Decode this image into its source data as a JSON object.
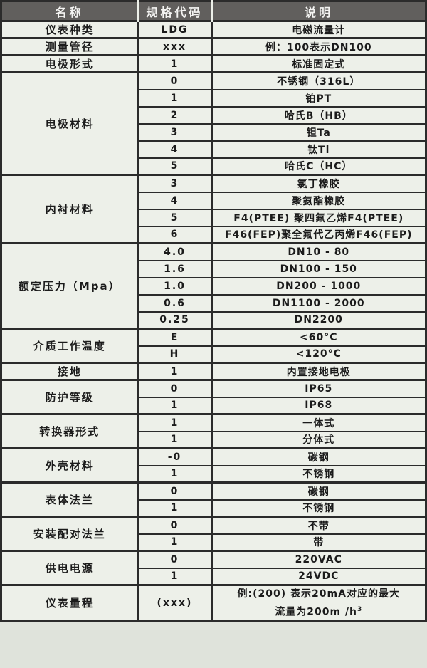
{
  "colors": {
    "page_bg": "#dfe3db",
    "cell_bg": "#edf0e9",
    "header_bg": "#615f5d",
    "header_text": "#f4f4f2",
    "border": "#2b2b2b",
    "text": "#1b1b1b"
  },
  "table": {
    "headers": [
      "名称",
      "规格代码",
      "说明"
    ],
    "groups": [
      {
        "name": "仪表种类",
        "rows": [
          {
            "code": "LDG",
            "desc": "电磁流量计"
          }
        ]
      },
      {
        "name": "测量管径",
        "rows": [
          {
            "code": "xxx",
            "desc": "例：100表示DN100"
          }
        ]
      },
      {
        "name": "电极形式",
        "rows": [
          {
            "code": "1",
            "desc": "标准固定式"
          }
        ]
      },
      {
        "name": "电极材料",
        "rows": [
          {
            "code": "0",
            "desc": "不锈钢（316L）"
          },
          {
            "code": "1",
            "desc": "铂PT"
          },
          {
            "code": "2",
            "desc": "哈氏B（HB）"
          },
          {
            "code": "3",
            "desc": "钽Ta"
          },
          {
            "code": "4",
            "desc": "钛Ti"
          },
          {
            "code": "5",
            "desc": "哈氏C（HC）"
          }
        ]
      },
      {
        "name": "内衬材料",
        "rows": [
          {
            "code": "3",
            "desc": "氯丁橡胶"
          },
          {
            "code": "4",
            "desc": "聚氨酯橡胶"
          },
          {
            "code": "5",
            "desc": "F4(PTEE) 聚四氟乙烯F4(PTEE)"
          },
          {
            "code": "6",
            "desc": "F46(FEP)聚全氟代乙丙烯F46(FEP)"
          }
        ]
      },
      {
        "name": "额定压力（Mpa）",
        "rows": [
          {
            "code": "4.0",
            "desc": "DN10 - 80"
          },
          {
            "code": "1.6",
            "desc": "DN100 - 150"
          },
          {
            "code": "1.0",
            "desc": "DN200 - 1000"
          },
          {
            "code": "0.6",
            "desc": "DN1100 - 2000"
          },
          {
            "code": "0.25",
            "desc": "DN2200"
          }
        ]
      },
      {
        "name": "介质工作温度",
        "rows": [
          {
            "code": "E",
            "desc": "<60°C"
          },
          {
            "code": "H",
            "desc": "<120°C"
          }
        ]
      },
      {
        "name": "接地",
        "rows": [
          {
            "code": "1",
            "desc": "内置接地电极"
          }
        ]
      },
      {
        "name": "防护等级",
        "rows": [
          {
            "code": "0",
            "desc": "IP65"
          },
          {
            "code": "1",
            "desc": "IP68"
          }
        ]
      },
      {
        "name": "转换器形式",
        "rows": [
          {
            "code": "1",
            "desc": "一体式"
          },
          {
            "code": "1",
            "desc": "分体式"
          }
        ]
      },
      {
        "name": "外壳材料",
        "rows": [
          {
            "code": "-0",
            "desc": "碳钢"
          },
          {
            "code": "1",
            "desc": "不锈钢"
          }
        ]
      },
      {
        "name": "表体法兰",
        "rows": [
          {
            "code": "0",
            "desc": "碳钢"
          },
          {
            "code": "1",
            "desc": "不锈钢"
          }
        ]
      },
      {
        "name": "安装配对法兰",
        "rows": [
          {
            "code": "0",
            "desc": "不带"
          },
          {
            "code": "1",
            "desc": "带"
          }
        ]
      },
      {
        "name": "供电电源",
        "rows": [
          {
            "code": "0",
            "desc": "220VAC"
          },
          {
            "code": "1",
            "desc": "24VDC"
          }
        ]
      },
      {
        "name": "仪表量程",
        "tall": true,
        "rows": [
          {
            "code": "(xxx)",
            "desc_lines": [
              {
                "text": "例:(200) 表示20mA对应的最大"
              },
              {
                "text": "流量为200m /h",
                "sup": "3"
              }
            ]
          }
        ]
      }
    ]
  }
}
